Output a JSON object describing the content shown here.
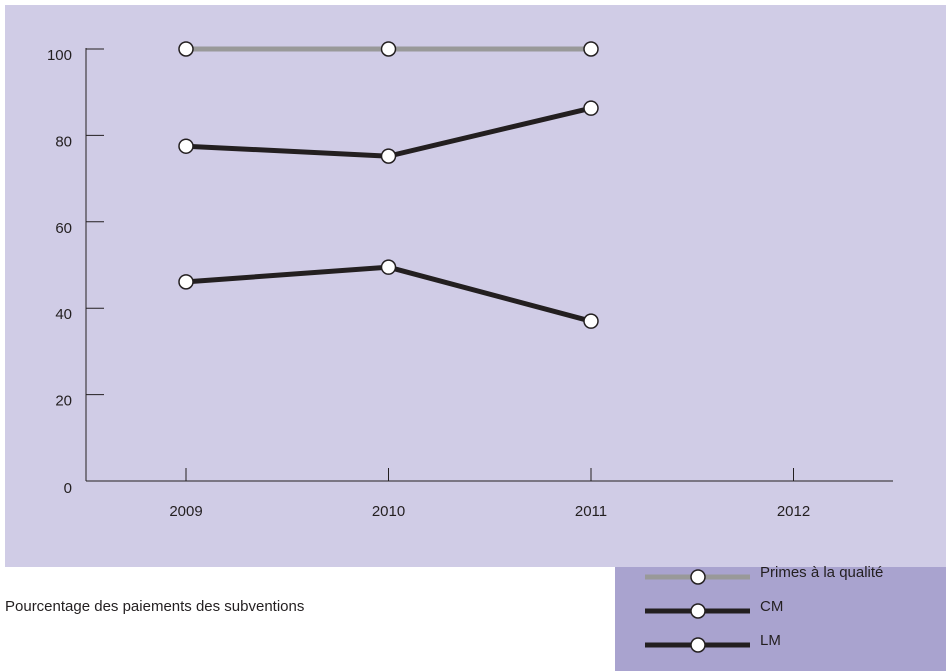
{
  "chart_data": {
    "type": "line",
    "ylabel": "Pourcentage des paiements des subventions",
    "categories": [
      "2009",
      "2010",
      "2011",
      "2012"
    ],
    "series": [
      {
        "name": "Primes à la qualité",
        "color": "#999999",
        "values": [
          100,
          100,
          100,
          null
        ]
      },
      {
        "name": "CM",
        "color": "#231f20",
        "values": [
          77.5,
          75.2,
          86.3,
          null
        ]
      },
      {
        "name": "LM",
        "color": "#231f20",
        "values": [
          46.1,
          49.5,
          37.0,
          null
        ]
      }
    ],
    "ylim": [
      0,
      100
    ],
    "yticks": [
      0,
      20,
      40,
      60,
      80,
      100
    ]
  }
}
